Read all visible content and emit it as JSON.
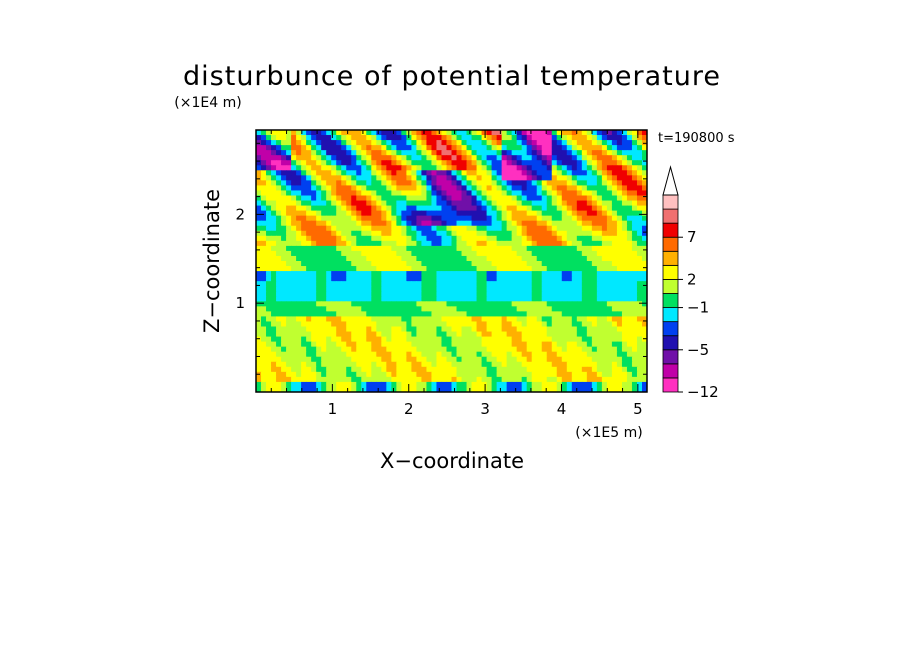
{
  "chart_data": {
    "type": "heatmap",
    "title": "disturbunce of potential temperature",
    "xlabel": "X−coordinate",
    "ylabel": "Z−coordinate",
    "x_unit": "(×1E5 m)",
    "y_unit": "(×1E4 m)",
    "time_label": "t=190800 s",
    "xlim": [
      0,
      5.12
    ],
    "ylim": [
      0,
      2.95
    ],
    "x_ticks": [
      {
        "value": 1,
        "label": "1"
      },
      {
        "value": 2,
        "label": "2"
      },
      {
        "value": 3,
        "label": "3"
      },
      {
        "value": 4,
        "label": "4"
      },
      {
        "value": 5,
        "label": "5"
      }
    ],
    "y_ticks": [
      {
        "value": 1,
        "label": "1"
      },
      {
        "value": 2,
        "label": "2"
      }
    ],
    "colorbar": {
      "bins": [
        {
          "color": "#ff30c0"
        },
        {
          "color": "#c000a8"
        },
        {
          "color": "#7010a8"
        },
        {
          "color": "#2010b0"
        },
        {
          "color": "#0040f0"
        },
        {
          "color": "#00e8ff"
        },
        {
          "color": "#00e060"
        },
        {
          "color": "#c0ff30"
        },
        {
          "color": "#ffff00"
        },
        {
          "color": "#ffb000"
        },
        {
          "color": "#ff6a00"
        },
        {
          "color": "#f00000"
        },
        {
          "color": "#f07070"
        },
        {
          "color": "#ffc0c0"
        }
      ],
      "labels": [
        {
          "bin": 0,
          "label": "−12"
        },
        {
          "bin": 3,
          "label": "−5"
        },
        {
          "bin": 6,
          "label": "−1"
        },
        {
          "bin": 8,
          "label": "2"
        },
        {
          "bin": 11,
          "label": "7"
        }
      ]
    }
  }
}
